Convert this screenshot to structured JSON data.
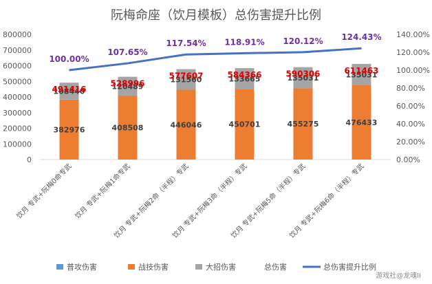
{
  "chart_data": {
    "type": "bar",
    "title": "阮梅命座（饮月模板）总伤害提升比例",
    "categories": [
      "饮月 专武+阮梅0命专武",
      "饮月 专武+阮梅1命专武",
      "饮月 专武+阮梅2命（半程）专武",
      "饮月 专武+阮梅3命（半程）专武",
      "饮月 专武+阮梅5命（半程）专武",
      "饮月 专武+阮梅6命（半程）专武"
    ],
    "series": [
      {
        "name": "普攻伤害",
        "values": [
          0,
          0,
          0,
          0,
          0,
          0
        ],
        "color": "#5b9bd5"
      },
      {
        "name": "战技伤害",
        "values": [
          382976,
          408508,
          446046,
          450701,
          455275,
          476433
        ],
        "color": "#ed7d31"
      },
      {
        "name": "大招伤害",
        "values": [
          108440,
          120489,
          131560,
          133665,
          135031,
          135031
        ],
        "color": "#a5a5a5"
      }
    ],
    "totals": {
      "name": "总伤害",
      "values": [
        491416,
        528996,
        577607,
        584366,
        590306,
        611463
      ],
      "color": "#e00000"
    },
    "ratio": {
      "name": "总伤害提升比例",
      "values": [
        100.0,
        107.65,
        117.54,
        118.91,
        120.12,
        124.43
      ],
      "labels": [
        "100.00%",
        "107.65%",
        "117.54%",
        "118.91%",
        "120.12%",
        "124.43%"
      ],
      "color": "#4472c4",
      "label_color": "#7030a0"
    },
    "y_left": {
      "min": 0,
      "max": 800000,
      "step": 100000,
      "ticks": [
        "0",
        "100000",
        "200000",
        "300000",
        "400000",
        "500000",
        "600000",
        "700000",
        "800000"
      ]
    },
    "y_right": {
      "min": 0,
      "max": 140,
      "step": 20,
      "ticks": [
        "0.00%",
        "20.00%",
        "40.00%",
        "60.00%",
        "80.00%",
        "100.00%",
        "120.00%",
        "140.00%"
      ]
    },
    "legend_position": "bottom",
    "grid": false
  },
  "watermark": "游戏社@龙魂II"
}
